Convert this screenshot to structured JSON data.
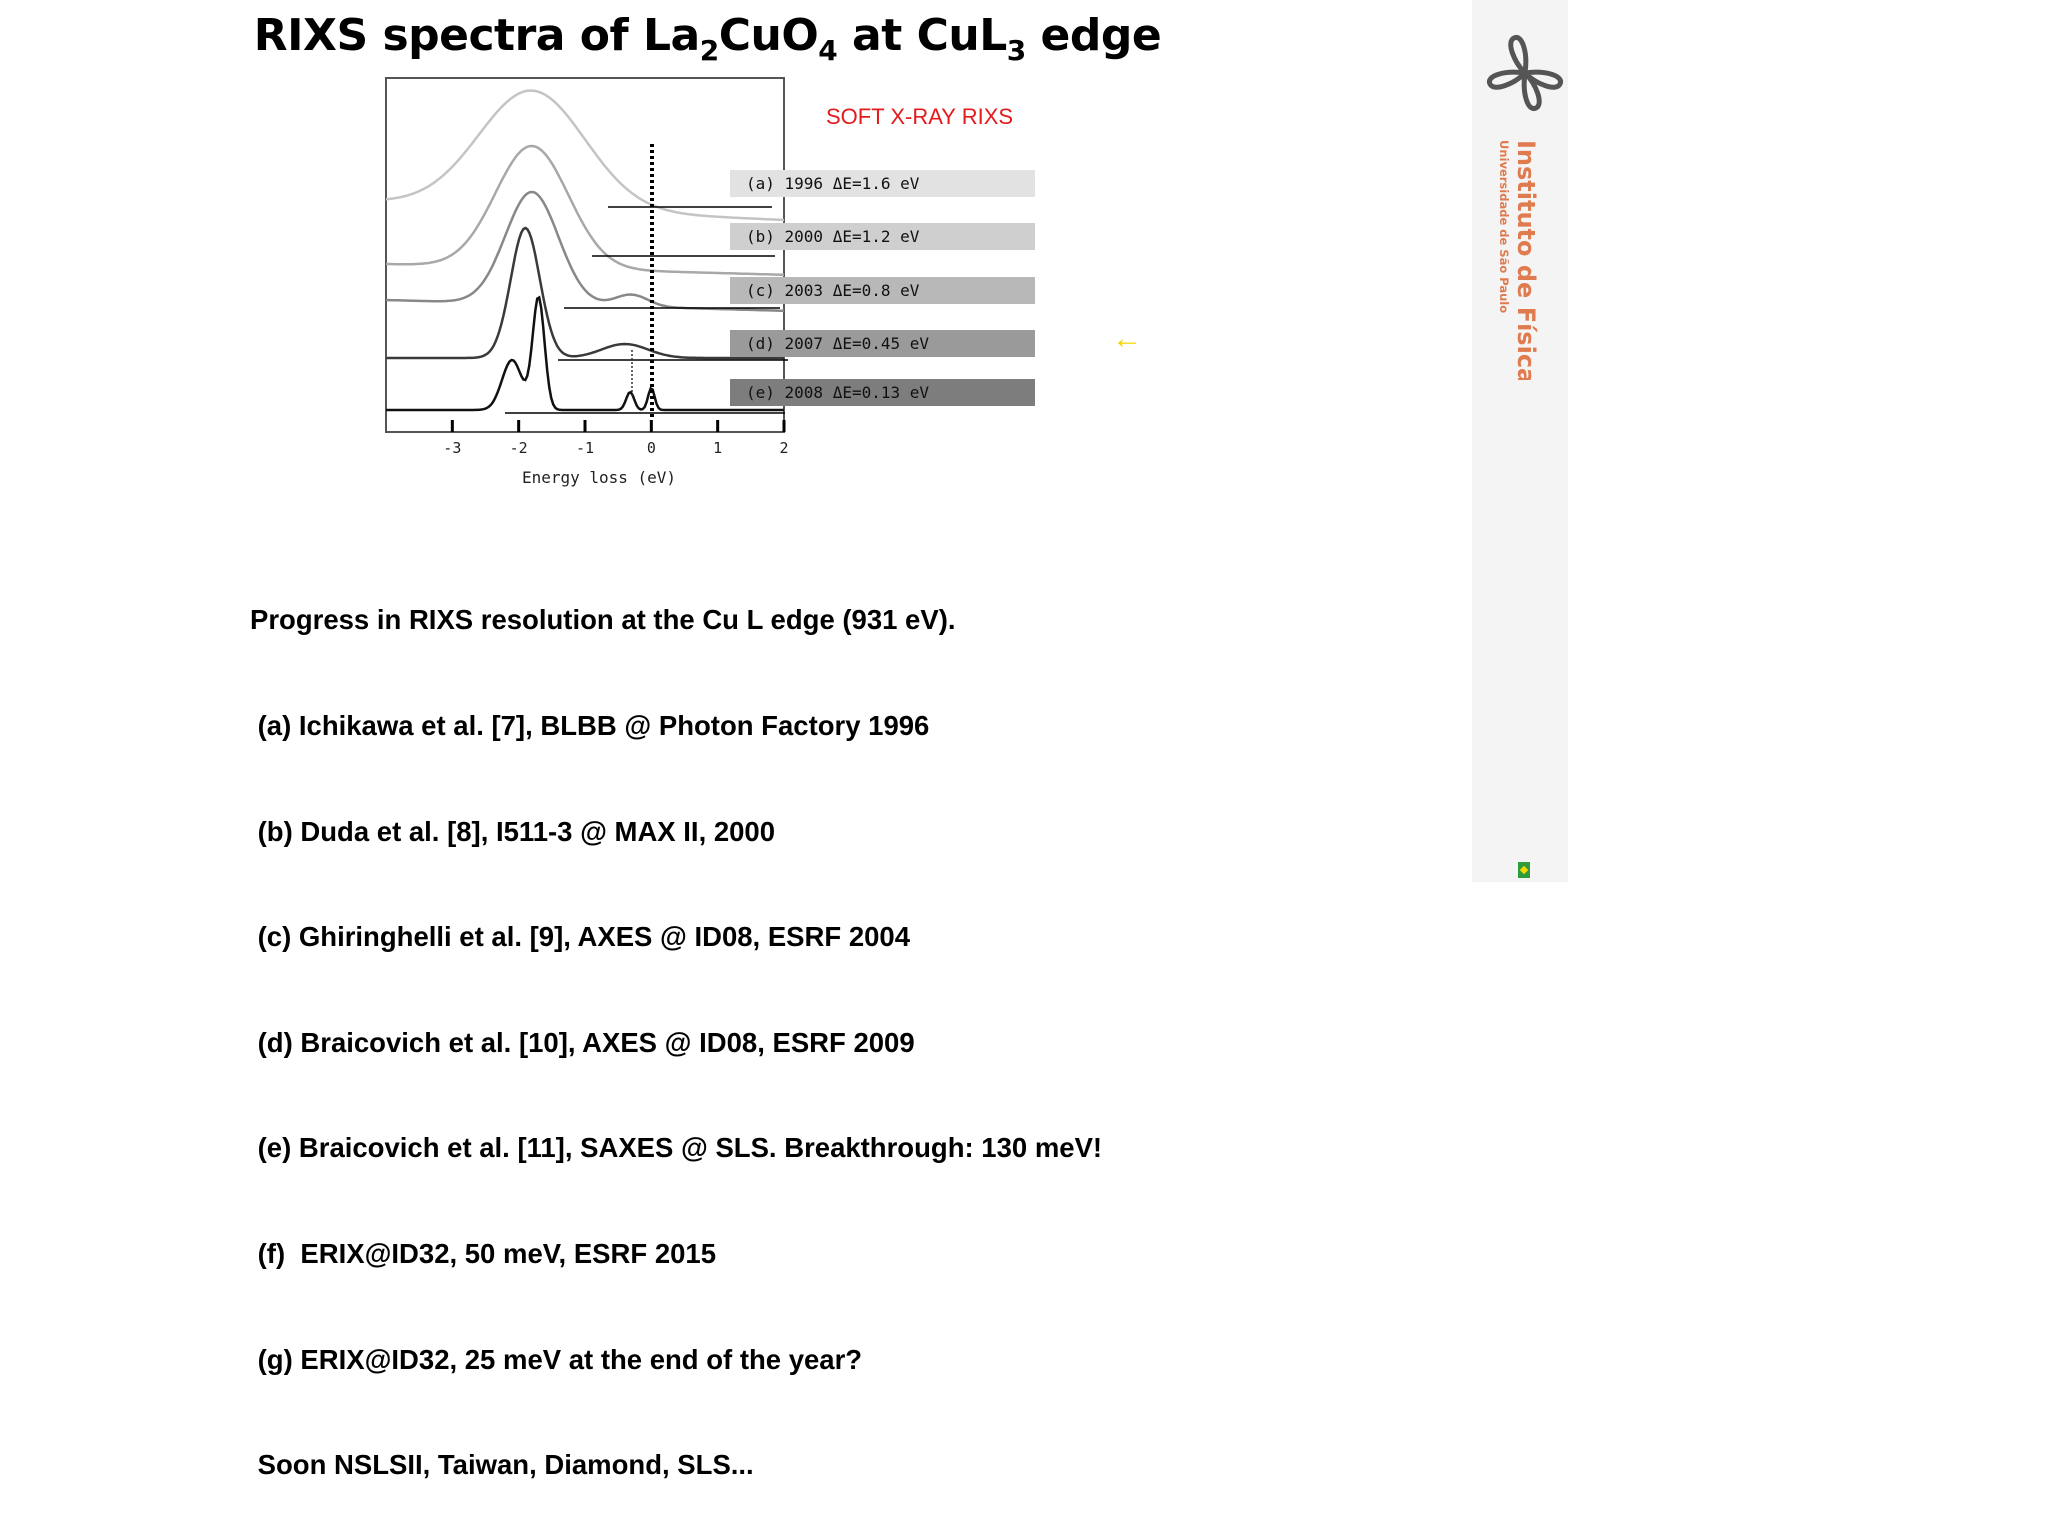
{
  "title": {
    "pre": "RIXS spectra of La",
    "sub1": "2",
    "mid": "CuO",
    "sub2": "4",
    "post": " at CuL",
    "sub3": "3",
    "end": " edge"
  },
  "soft_label": "SOFT X-RAY RIXS",
  "arrow": "←",
  "badges": [
    "(a) 1996 ΔE=1.6 eV",
    "(b) 2000 ΔE=1.2 eV",
    "(c) 2003 ΔE=0.8 eV",
    "(d) 2007 ΔE=0.45 eV",
    "(e) 2008 ΔE=0.13 eV"
  ],
  "badge_colors": [
    "#e2e2e2",
    "#cfcfcf",
    "#b8b8b8",
    "#9a9a9a",
    "#7d7d7d"
  ],
  "chart_data": {
    "type": "line",
    "xlabel": "Energy loss (eV)",
    "xticks": [
      "-3",
      "-2",
      "-1",
      "0",
      "1",
      "2"
    ],
    "xlim": [
      -4,
      2
    ],
    "series": [
      {
        "name": "(a) 1996 ΔE=1.6 eV",
        "color": "#c4c4c4"
      },
      {
        "name": "(b) 2000 ΔE=1.2 eV",
        "color": "#a8a8a8"
      },
      {
        "name": "(c) 2003 ΔE=0.8 eV",
        "color": "#888888"
      },
      {
        "name": "(d) 2007 ΔE=0.45 eV",
        "color": "#3a3a3a"
      },
      {
        "name": "(e) 2008 ΔE=0.13 eV",
        "color": "#111111"
      }
    ]
  },
  "body_lines": [
    "Progress in RIXS resolution at the Cu L edge (931 eV).",
    " (a) Ichikawa et al. [7], BLBB @ Photon Factory 1996",
    " (b) Duda et al. [8], I511-3 @ MAX II, 2000",
    " (c) Ghiringhelli et al. [9], AXES @ ID08, ESRF 2004",
    " (d) Braicovich et al. [10], AXES @ ID08, ESRF 2009",
    " (e) Braicovich et al. [11], SAXES @ SLS. Breakthrough: 130 meV!",
    " (f)  ERIX@ID32, 50 meV, ESRF 2015",
    " (g) ERIX@ID32, 25 meV at the end of the year?",
    " Soon NSLSII, Taiwan, Diamond, SLS..."
  ],
  "brand": {
    "name": "Instituto de Física",
    "sub": "Universidade de São Paulo",
    "color": "#e07a4f"
  }
}
